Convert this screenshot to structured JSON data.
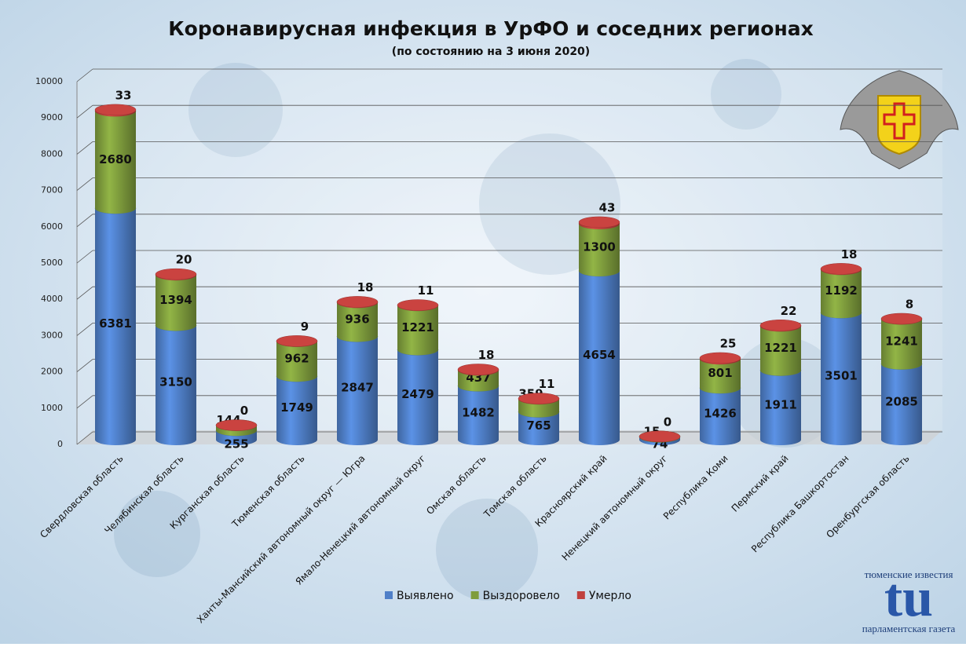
{
  "chart_data": {
    "type": "stacked-bar",
    "title": "Коронавирусная инфекция в УрФО и соседних регионах",
    "subtitle": "(по состоянию на 3 июня 2020)",
    "categories": [
      "Свердловская область",
      "Челябинская область",
      "Курганская область",
      "Тюменская область",
      "Ханты-Мансийский автономный округ — Югра",
      "Ямало-Ненецкий автономный округ",
      "Омская область",
      "Томская область",
      "Красноярский край",
      "Ненецкий автономный округ",
      "Республика Коми",
      "Пермский край",
      "Республика Башкортостан",
      "Оренбургская область"
    ],
    "series": [
      {
        "name": "Выявлено",
        "color": "#4f7fc8",
        "values": [
          6381,
          3150,
          255,
          1749,
          2847,
          2479,
          1482,
          765,
          4654,
          74,
          1426,
          1911,
          3501,
          2085
        ]
      },
      {
        "name": "Выздоровело",
        "color": "#7f9d3d",
        "values": [
          2680,
          1394,
          144,
          962,
          936,
          1221,
          437,
          359,
          1300,
          15,
          801,
          1221,
          1192,
          1241
        ]
      },
      {
        "name": "Умерло",
        "color": "#c0403d",
        "values": [
          33,
          20,
          0,
          9,
          18,
          11,
          18,
          11,
          43,
          0,
          25,
          22,
          18,
          8
        ]
      }
    ],
    "ylim": [
      0,
      10000
    ],
    "yticks": [
      0,
      1000,
      2000,
      3000,
      4000,
      5000,
      6000,
      7000,
      8000,
      9000,
      10000
    ],
    "grid": true,
    "legend": "bottom"
  },
  "logo": {
    "top": "тюменские известия",
    "mark": "tu",
    "bottom": "парламентская газета"
  }
}
